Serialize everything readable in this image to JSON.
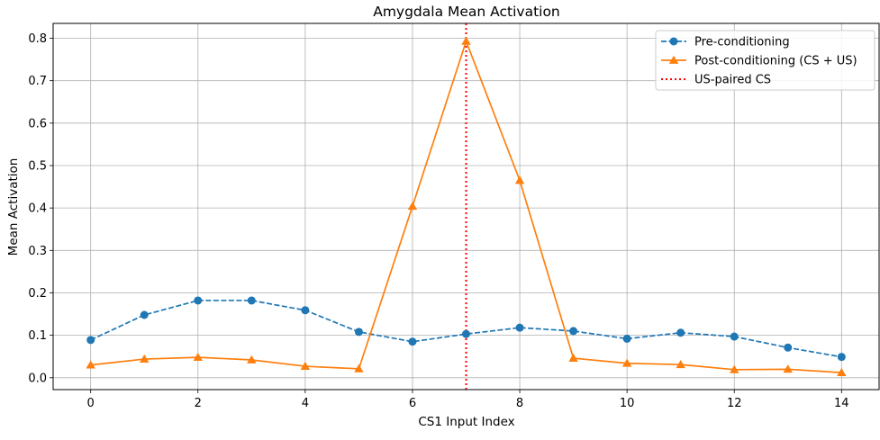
{
  "chart_data": {
    "type": "line",
    "title": "Amygdala Mean Activation",
    "xlabel": "CS1 Input Index",
    "ylabel": "Mean Activation",
    "xlim": [
      -0.7,
      14.7
    ],
    "ylim": [
      -0.028,
      0.835
    ],
    "xticks": [
      0,
      2,
      4,
      6,
      8,
      10,
      12,
      14
    ],
    "yticks": [
      0.0,
      0.1,
      0.2,
      0.3,
      0.4,
      0.5,
      0.6,
      0.7,
      0.8
    ],
    "ytick_labels": [
      "0.0",
      "0.1",
      "0.2",
      "0.3",
      "0.4",
      "0.5",
      "0.6",
      "0.7",
      "0.8"
    ],
    "grid": true,
    "legend_position": "top-right",
    "x": [
      0,
      1,
      2,
      3,
      4,
      5,
      6,
      7,
      8,
      9,
      10,
      11,
      12,
      13,
      14
    ],
    "series": [
      {
        "name": "Pre-conditioning",
        "color": "#1f77b4",
        "marker": "circle",
        "linestyle": "dashed",
        "values": [
          0.089,
          0.148,
          0.182,
          0.182,
          0.159,
          0.108,
          0.085,
          0.103,
          0.118,
          0.11,
          0.092,
          0.106,
          0.097,
          0.071,
          0.049
        ]
      },
      {
        "name": "Post-conditioning (CS + US)",
        "color": "#ff7f0e",
        "marker": "triangle",
        "linestyle": "solid",
        "values": [
          0.03,
          0.044,
          0.048,
          0.042,
          0.027,
          0.021,
          0.404,
          0.793,
          0.465,
          0.046,
          0.034,
          0.031,
          0.019,
          0.02,
          0.012
        ]
      }
    ],
    "reference_line": {
      "name": "US-paired CS",
      "x": 7,
      "color": "#ff0000",
      "linestyle": "dotted"
    }
  }
}
